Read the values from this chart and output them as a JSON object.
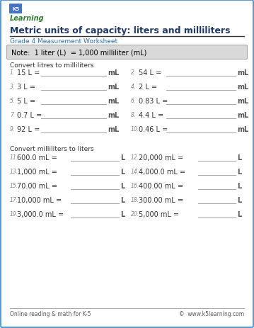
{
  "page_bg": "#ffffff",
  "border_color": "#5b9bd5",
  "title": "Metric units of capacity: liters and milliliters",
  "title_color": "#1f3864",
  "subtitle": "Grade 4 Measurement Worksheet",
  "subtitle_color": "#2e74b5",
  "note_bg": "#d9d9d9",
  "note_text": "Note:  1 liter (L)  = 1,000 milliliter (mL)",
  "note_color": "#000000",
  "section1_title": "Convert litres to milliliters",
  "section2_title": "Convert milliliters to liters",
  "problems_s1_left": [
    {
      "num": "1.",
      "expr": "15 L =",
      "unit": "mL"
    },
    {
      "num": "3.",
      "expr": "3 L =",
      "unit": "mL"
    },
    {
      "num": "5.",
      "expr": "5 L =",
      "unit": "mL"
    },
    {
      "num": "7.",
      "expr": "0.7 L =",
      "unit": "mL"
    },
    {
      "num": "9.",
      "expr": "92 L =",
      "unit": "mL"
    }
  ],
  "problems_s1_right": [
    {
      "num": "2.",
      "expr": "54 L =",
      "unit": "mL"
    },
    {
      "num": "4.",
      "expr": "2 L =",
      "unit": "mL"
    },
    {
      "num": "6.",
      "expr": "0.83 L =",
      "unit": "mL"
    },
    {
      "num": "8.",
      "expr": "4.4 L =",
      "unit": "mL"
    },
    {
      "num": "10.",
      "expr": "0.46 L =",
      "unit": "mL"
    }
  ],
  "problems_s2_left": [
    {
      "num": "11.",
      "expr": "600.0 mL =",
      "unit": "L"
    },
    {
      "num": "13.",
      "expr": "1,000 mL =",
      "unit": "L"
    },
    {
      "num": "15.",
      "expr": "70.00 mL =",
      "unit": "L"
    },
    {
      "num": "17.",
      "expr": "10,000 mL =",
      "unit": "L"
    },
    {
      "num": "19.",
      "expr": "3,000.0 mL =",
      "unit": "L"
    }
  ],
  "problems_s2_right": [
    {
      "num": "12.",
      "expr": "20,000 mL =",
      "unit": "L"
    },
    {
      "num": "14.",
      "expr": "4,000.0 mL =",
      "unit": "L"
    },
    {
      "num": "16.",
      "expr": "400.00 mL =",
      "unit": "L"
    },
    {
      "num": "18.",
      "expr": "300.00 mL =",
      "unit": "L"
    },
    {
      "num": "20.",
      "expr": "5,000 mL =",
      "unit": "L"
    }
  ],
  "footer_left": "Online reading & math for K-5",
  "footer_right": "©  www.k5learning.com",
  "footer_color": "#595959",
  "line_color": "#000000",
  "problem_color": "#333333",
  "num_color": "#888888",
  "unit_color": "#555555"
}
